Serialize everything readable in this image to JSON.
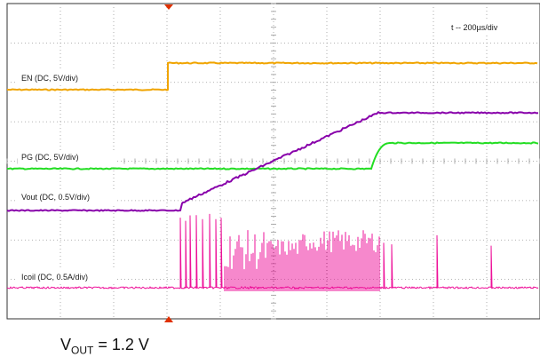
{
  "timebase": {
    "label": "t -- 200µs/div"
  },
  "channels": [
    {
      "id": "en",
      "label": "EN (DC, 5V/div)",
      "color": "#f0a400"
    },
    {
      "id": "pg",
      "label": "PG (DC, 5V/div)",
      "color": "#22dd22"
    },
    {
      "id": "vout",
      "label": "Vout (DC, 0.5V/div)",
      "color": "#8800aa"
    },
    {
      "id": "icoil",
      "label": "Icoil (DC, 0.5A/div)",
      "color": "#ee1199"
    }
  ],
  "caption": {
    "prefix": "V",
    "sub": "OUT",
    "suffix": " = 1.2 V"
  },
  "colors": {
    "grid": "#999999",
    "trigger_marker": "#e03000"
  }
}
